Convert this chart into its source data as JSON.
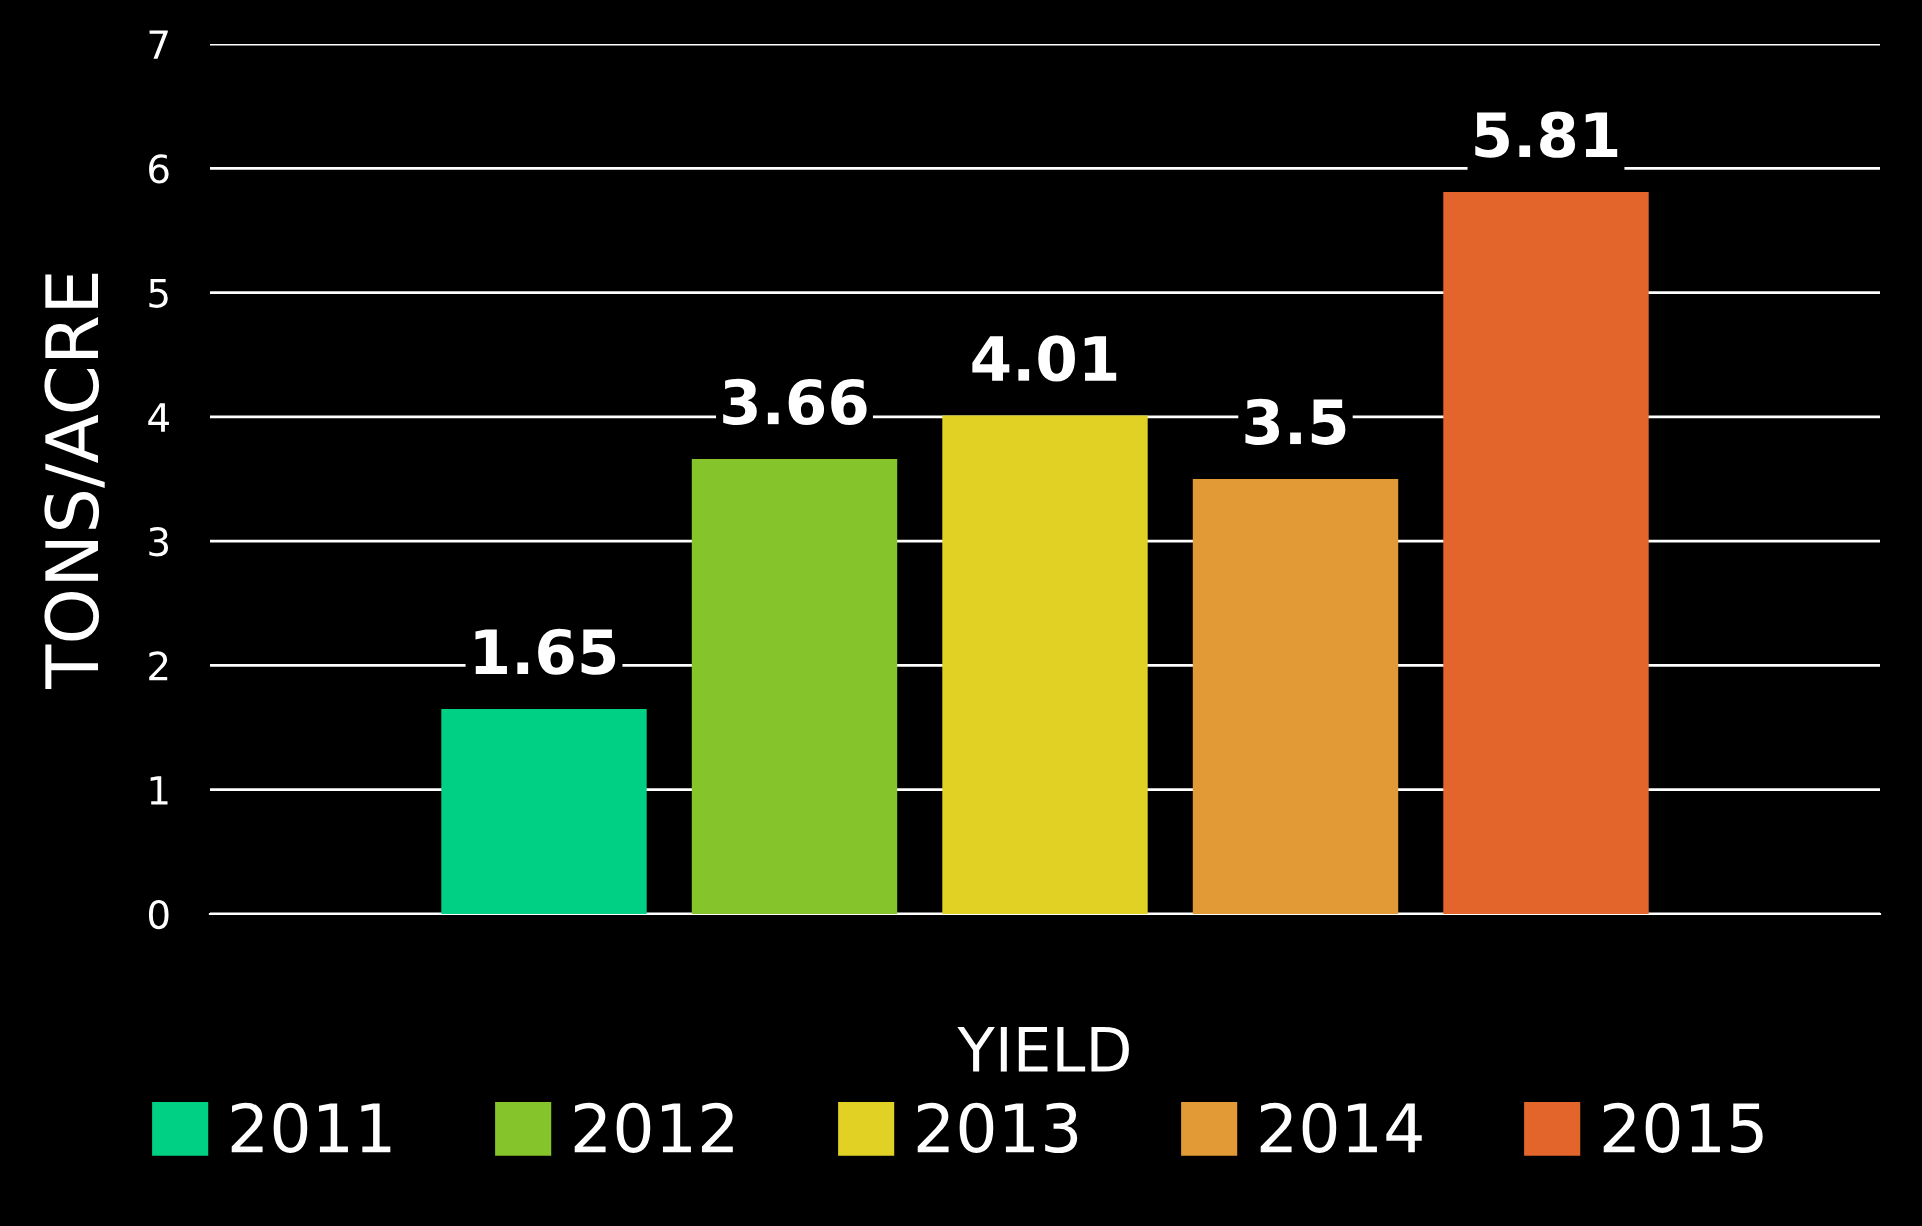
{
  "chart_data": {
    "type": "bar",
    "categories": [
      "YIELD"
    ],
    "ylabel": "TONS/ACRE",
    "series": [
      {
        "name": "2011",
        "color": "#00d084",
        "values": [
          1.65
        ]
      },
      {
        "name": "2012",
        "color": "#86c42c",
        "values": [
          3.66
        ]
      },
      {
        "name": "2013",
        "color": "#e1d125",
        "values": [
          4.01
        ]
      },
      {
        "name": "2014",
        "color": "#e29a37",
        "values": [
          3.5
        ]
      },
      {
        "name": "2015",
        "color": "#e4652b",
        "values": [
          5.81
        ]
      }
    ],
    "ylim": [
      0,
      7
    ],
    "yticks": [
      0,
      1,
      2,
      3,
      4,
      5,
      6,
      7
    ],
    "grid": "y",
    "legend": "bottom",
    "data_labels": true
  }
}
